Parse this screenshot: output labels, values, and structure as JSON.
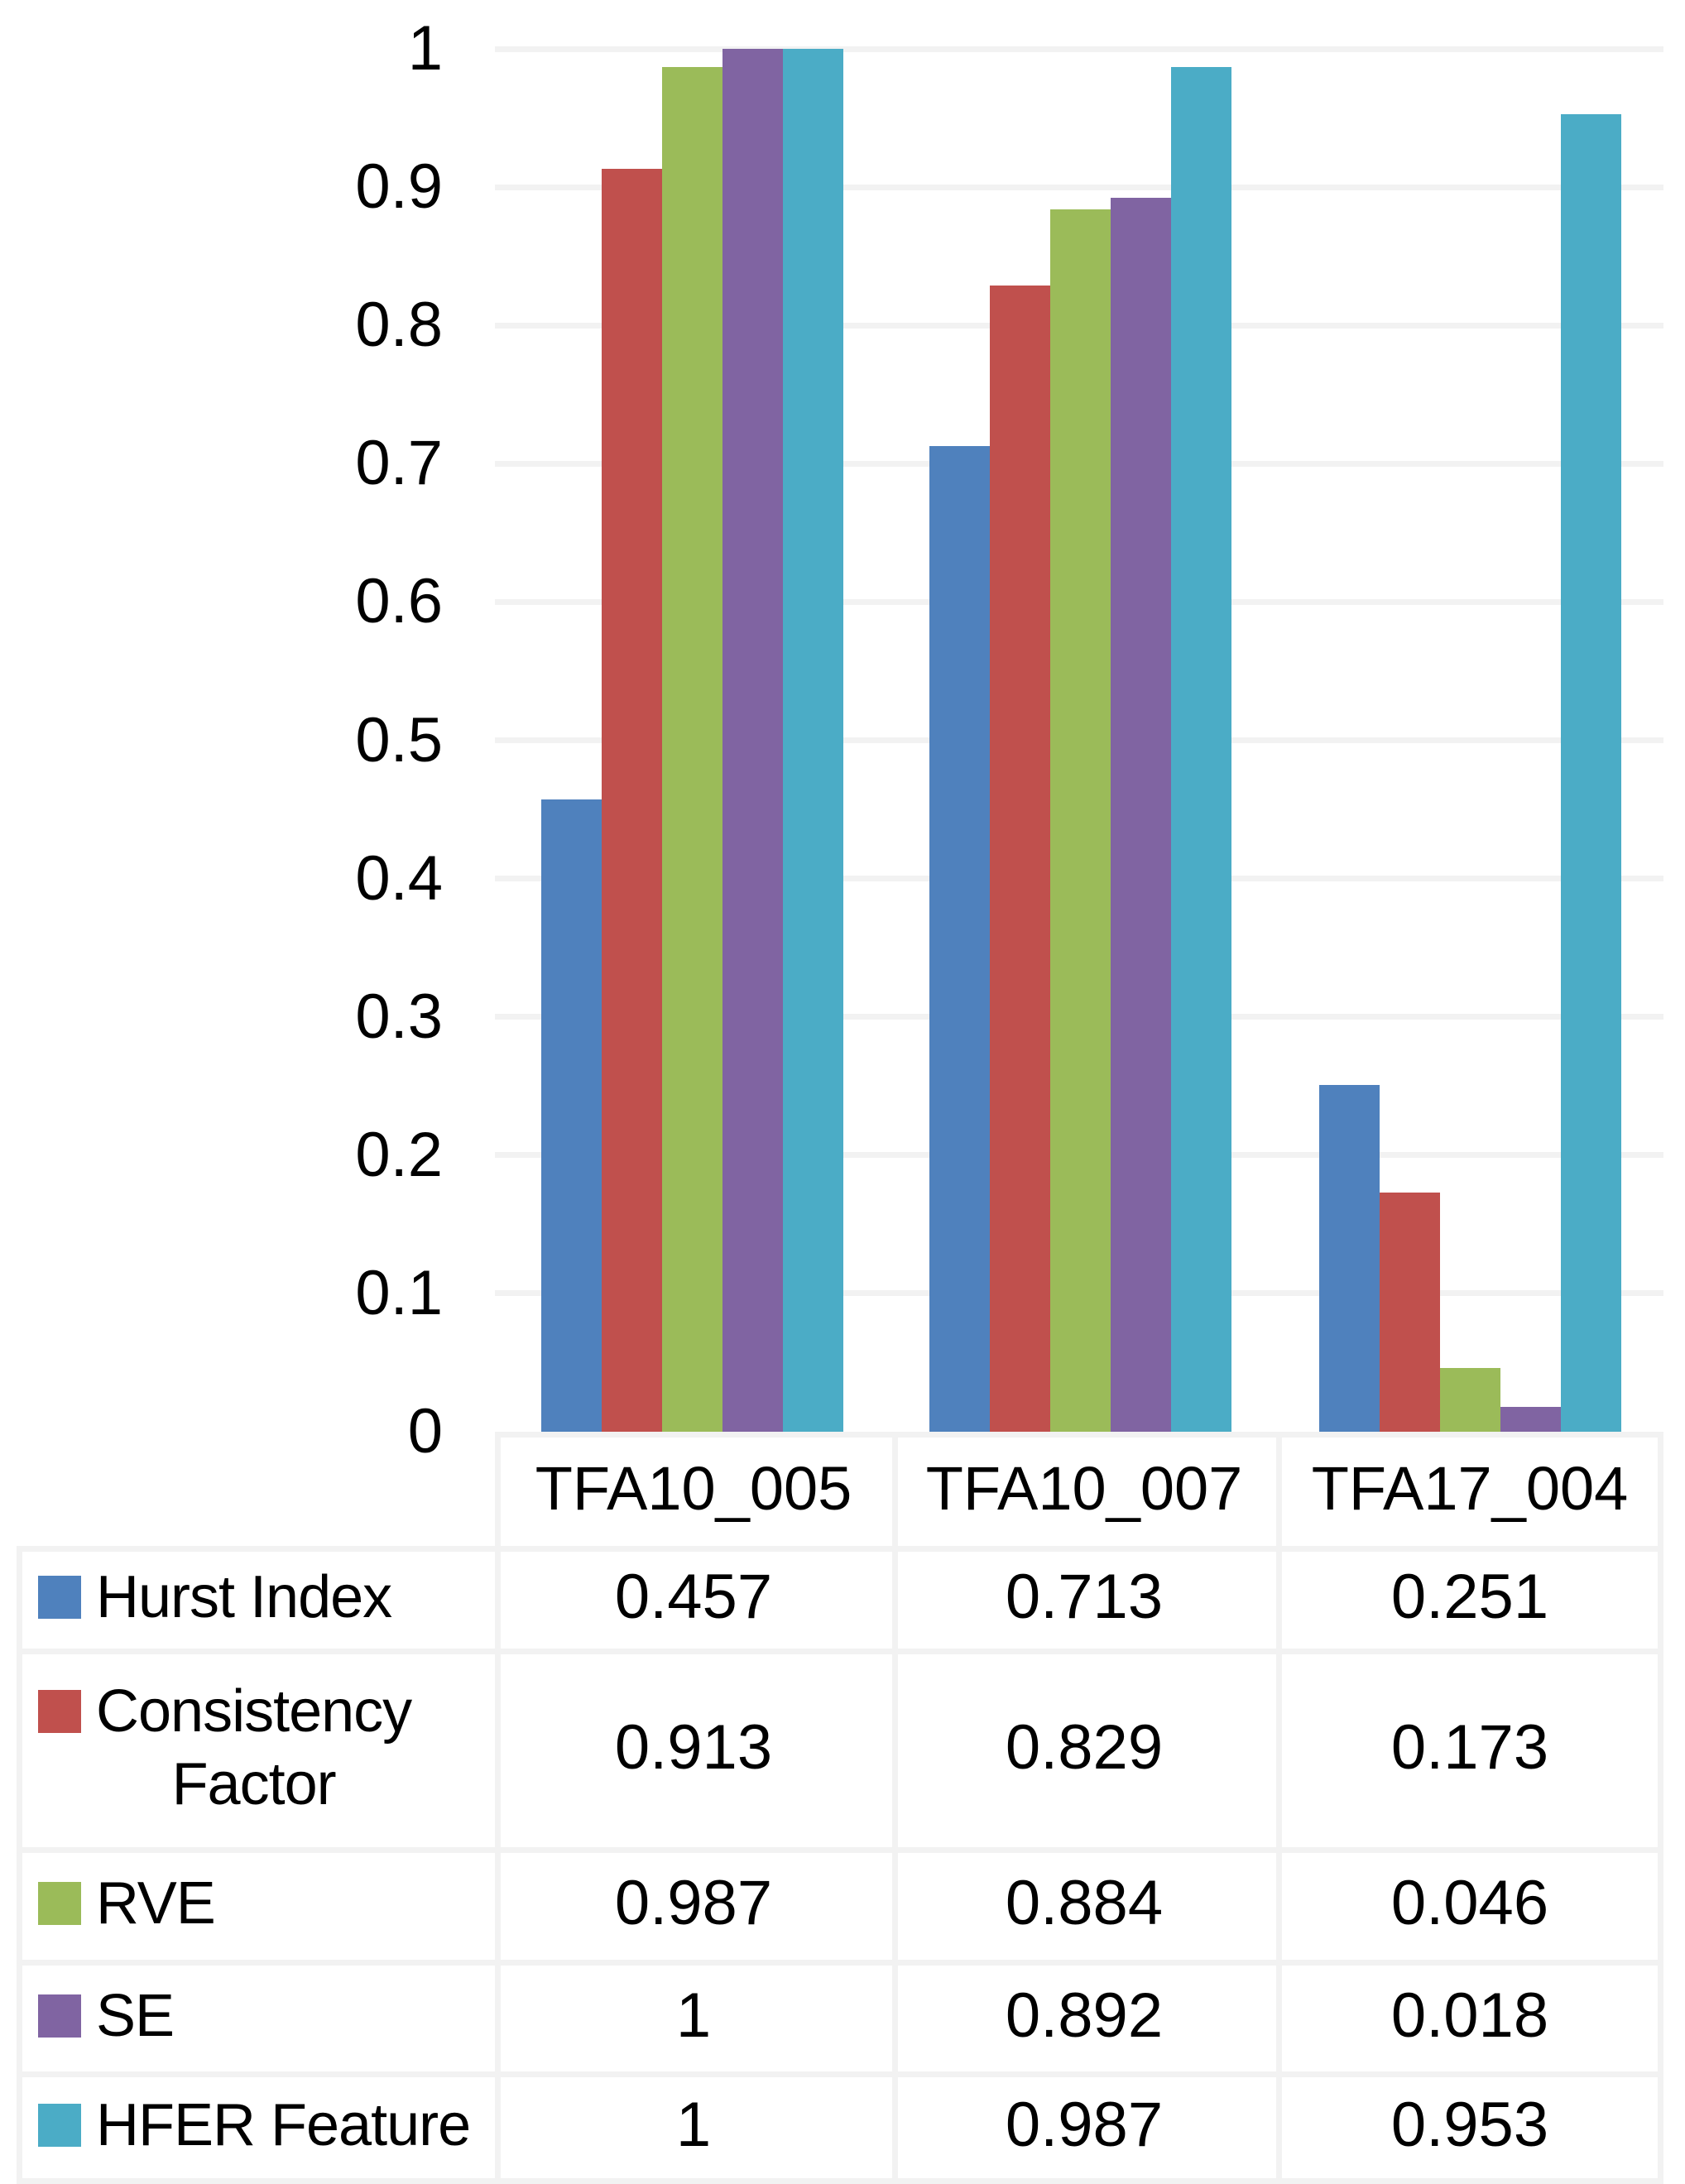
{
  "chart_data": {
    "type": "bar",
    "title": "",
    "categories": [
      "TFA10_005",
      "TFA10_007",
      "TFA17_004"
    ],
    "series": [
      {
        "name": "Hurst Index",
        "name_lines": [
          "Hurst Index"
        ],
        "color": "#4F81BD",
        "values": [
          0.457,
          0.713,
          0.251
        ],
        "display": [
          "0.457",
          "0.713",
          "0.251"
        ]
      },
      {
        "name": "Consistency Factor",
        "name_lines": [
          "Consistency",
          "Factor"
        ],
        "color": "#C0504D",
        "values": [
          0.913,
          0.829,
          0.173
        ],
        "display": [
          "0.913",
          "0.829",
          "0.173"
        ]
      },
      {
        "name": "RVE",
        "name_lines": [
          "RVE"
        ],
        "color": "#9BBB59",
        "values": [
          0.987,
          0.884,
          0.046
        ],
        "display": [
          "0.987",
          "0.884",
          "0.046"
        ]
      },
      {
        "name": "SE",
        "name_lines": [
          "SE"
        ],
        "color": "#8064A2",
        "values": [
          1,
          0.892,
          0.018
        ],
        "display": [
          "1",
          "0.892",
          "0.018"
        ]
      },
      {
        "name": "HFER Feature",
        "name_lines": [
          "HFER Feature"
        ],
        "color": "#4BACC6",
        "values": [
          1,
          0.987,
          0.953
        ],
        "display": [
          "1",
          "0.987",
          "0.953"
        ]
      }
    ],
    "y_axis": {
      "min": 0,
      "max": 1,
      "step": 0.1,
      "tick_labels": [
        "0",
        "0.1",
        "0.2",
        "0.3",
        "0.4",
        "0.5",
        "0.6",
        "0.7",
        "0.8",
        "0.9",
        "1"
      ]
    },
    "xlabel": "",
    "ylabel": "",
    "grid": "horizontal",
    "legend_position": "data-table-below-chart"
  },
  "styles": {
    "background": "#ffffff",
    "grid_color": "#f2f2f2",
    "table_border_color": "#f2f2f2",
    "text_color": "#000000"
  }
}
